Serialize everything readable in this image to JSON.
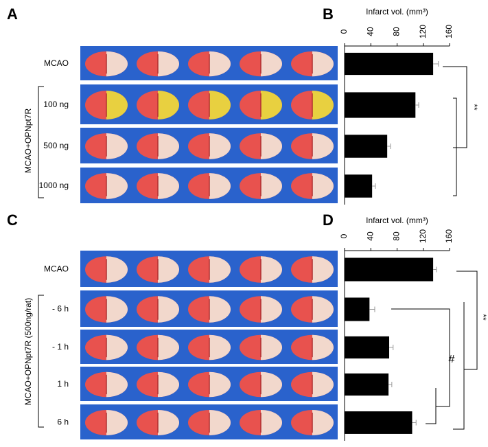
{
  "figure": {
    "panels": [
      "A",
      "B",
      "C",
      "D"
    ],
    "groups": [
      "MCAO+OPNpt7R",
      "MCAO+OPNpt7R (500ng/rat)"
    ],
    "significance": [
      "**",
      "**",
      "#"
    ]
  },
  "chart_data": [
    {
      "type": "bar",
      "orientation": "horizontal",
      "x_label": "Infarct vol. (mm³)",
      "categories": [
        "MCAO",
        "100 ng",
        "500 ng",
        "1000 ng"
      ],
      "values": [
        135,
        108,
        65,
        42
      ],
      "errors": [
        8,
        5,
        5,
        5
      ],
      "color": "#000000",
      "xlim": [
        0,
        160
      ],
      "xticks": [
        0,
        40,
        80,
        120,
        160
      ]
    },
    {
      "type": "bar",
      "orientation": "horizontal",
      "x_label": "Infarct vol. (mm³)",
      "categories": [
        "MCAO",
        "- 6 h",
        "- 1 h",
        "1 h",
        "6 h"
      ],
      "values": [
        135,
        38,
        68,
        67,
        103
      ],
      "errors": [
        5,
        8,
        6,
        5,
        6
      ],
      "color": "#000000",
      "xlim": [
        0,
        160
      ],
      "xticks": [
        0,
        40,
        80,
        120,
        160
      ]
    }
  ]
}
